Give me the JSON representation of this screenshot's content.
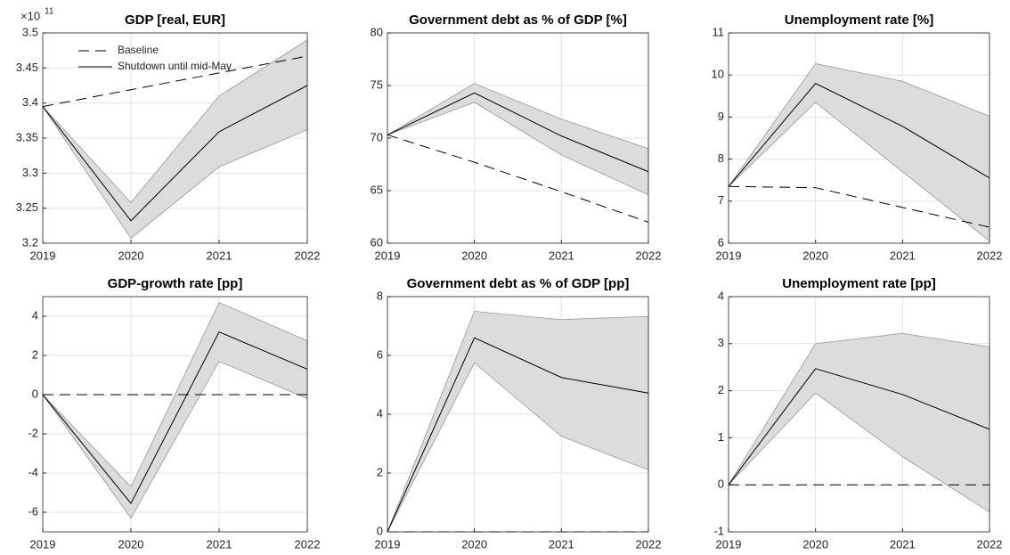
{
  "chart_data": [
    {
      "type": "line",
      "title": "GDP [real, EUR]",
      "x": [
        2019,
        2020,
        2021,
        2022
      ],
      "xlim": [
        2019,
        2022
      ],
      "xticks": [
        2019,
        2020,
        2021,
        2022
      ],
      "ylim": [
        3.2,
        3.5
      ],
      "yticks": [
        3.2,
        3.25,
        3.3,
        3.35,
        3.4,
        3.45,
        3.5
      ],
      "y_exponent_base": "×10",
      "y_exponent": 11,
      "grid": true,
      "legend": "upper left",
      "series": [
        {
          "name": "Baseline",
          "color": "#000000",
          "style": "dashed",
          "values": [
            3.395,
            3.419,
            3.443,
            3.467
          ]
        },
        {
          "name": "Shutdown until mid-May",
          "color": "#000000",
          "style": "solid",
          "values": [
            3.395,
            3.232,
            3.359,
            3.425
          ],
          "band_lower": [
            3.395,
            3.207,
            3.309,
            3.362
          ],
          "band_upper": [
            3.395,
            3.258,
            3.41,
            3.49
          ],
          "band_color": "#dcdcdc"
        }
      ]
    },
    {
      "type": "line",
      "title": "Government debt as % of GDP [%]",
      "x": [
        2019,
        2020,
        2021,
        2022
      ],
      "xlim": [
        2019,
        2022
      ],
      "xticks": [
        2019,
        2020,
        2021,
        2022
      ],
      "ylim": [
        60,
        80
      ],
      "yticks": [
        60,
        65,
        70,
        75,
        80
      ],
      "grid": true,
      "series": [
        {
          "color": "#000000",
          "style": "dashed",
          "values": [
            70.3,
            67.7,
            64.9,
            62.0
          ]
        },
        {
          "color": "#000000",
          "style": "solid",
          "values": [
            70.3,
            74.3,
            70.2,
            66.8
          ],
          "band_lower": [
            70.3,
            73.4,
            68.4,
            64.6
          ],
          "band_upper": [
            70.3,
            75.2,
            71.8,
            69.0
          ],
          "band_color": "#dcdcdc"
        }
      ]
    },
    {
      "type": "line",
      "title": "Unemployment rate [%]",
      "x": [
        2019,
        2020,
        2021,
        2022
      ],
      "xlim": [
        2019,
        2022
      ],
      "xticks": [
        2019,
        2020,
        2021,
        2022
      ],
      "ylim": [
        6,
        11
      ],
      "yticks": [
        6,
        7,
        8,
        9,
        10,
        11
      ],
      "grid": true,
      "series": [
        {
          "color": "#000000",
          "style": "dashed",
          "values": [
            7.35,
            7.32,
            6.85,
            6.38
          ]
        },
        {
          "color": "#000000",
          "style": "solid",
          "values": [
            7.35,
            9.8,
            8.78,
            7.55
          ],
          "band_lower": [
            7.35,
            9.35,
            7.7,
            6.05
          ],
          "band_upper": [
            7.35,
            10.27,
            9.85,
            9.02
          ],
          "band_color": "#dcdcdc"
        }
      ]
    },
    {
      "type": "line",
      "title": "GDP-growth rate [pp]",
      "x": [
        2019,
        2020,
        2021,
        2022
      ],
      "xlim": [
        2019,
        2022
      ],
      "xticks": [
        2019,
        2020,
        2021,
        2022
      ],
      "ylim": [
        -7,
        5
      ],
      "yticks": [
        -6,
        -4,
        -2,
        0,
        2,
        4
      ],
      "grid": true,
      "series": [
        {
          "color": "#000000",
          "style": "dashed",
          "values": [
            0,
            0,
            0,
            0
          ]
        },
        {
          "color": "#000000",
          "style": "solid",
          "values": [
            0,
            -5.55,
            3.2,
            1.3
          ],
          "band_lower": [
            0,
            -6.3,
            1.7,
            -0.2
          ],
          "band_upper": [
            0,
            -4.7,
            4.7,
            2.75
          ],
          "band_color": "#dcdcdc"
        }
      ]
    },
    {
      "type": "line",
      "title": "Government debt as % of GDP [pp]",
      "x": [
        2019,
        2020,
        2021,
        2022
      ],
      "xlim": [
        2019,
        2022
      ],
      "xticks": [
        2019,
        2020,
        2021,
        2022
      ],
      "ylim": [
        0,
        8
      ],
      "yticks": [
        0,
        2,
        4,
        6,
        8
      ],
      "grid": true,
      "series": [
        {
          "color": "#000000",
          "style": "dashed",
          "values": [
            0,
            0,
            0,
            0
          ]
        },
        {
          "color": "#000000",
          "style": "solid",
          "values": [
            0,
            6.6,
            5.25,
            4.72
          ],
          "band_lower": [
            0,
            5.75,
            3.25,
            2.1
          ],
          "band_upper": [
            0,
            7.5,
            7.22,
            7.33
          ],
          "band_color": "#dcdcdc"
        }
      ]
    },
    {
      "type": "line",
      "title": "Unemployment rate [pp]",
      "x": [
        2019,
        2020,
        2021,
        2022
      ],
      "xlim": [
        2019,
        2022
      ],
      "xticks": [
        2019,
        2020,
        2021,
        2022
      ],
      "ylim": [
        -1,
        4
      ],
      "yticks": [
        -1,
        0,
        1,
        2,
        3,
        4
      ],
      "grid": true,
      "series": [
        {
          "color": "#000000",
          "style": "dashed",
          "values": [
            0,
            0,
            0,
            0
          ]
        },
        {
          "color": "#000000",
          "style": "solid",
          "values": [
            0,
            2.47,
            1.92,
            1.18
          ],
          "band_lower": [
            0,
            1.95,
            0.6,
            -0.58
          ],
          "band_upper": [
            0,
            3.0,
            3.22,
            2.93
          ],
          "band_color": "#dcdcdc"
        }
      ]
    }
  ]
}
